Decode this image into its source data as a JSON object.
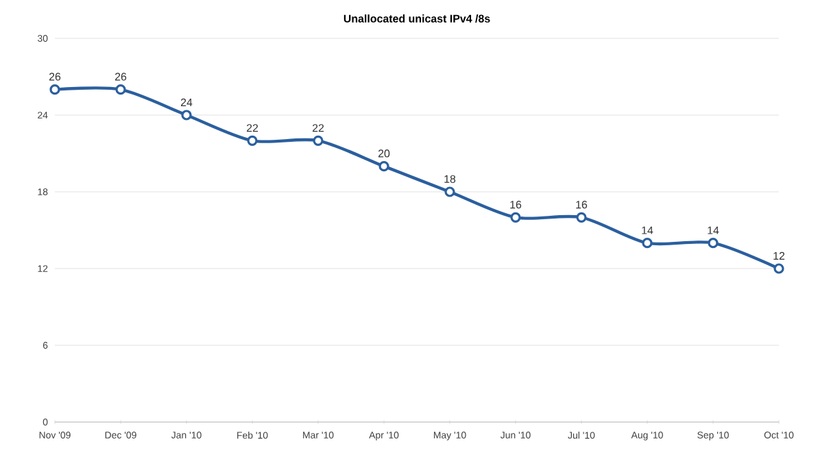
{
  "chart_data": {
    "type": "line",
    "title": "Unallocated unicast IPv4 /8s",
    "categories": [
      "Nov '09",
      "Dec '09",
      "Jan '10",
      "Feb '10",
      "Mar '10",
      "Apr '10",
      "May '10",
      "Jun '10",
      "Jul '10",
      "Aug '10",
      "Sep '10",
      "Oct '10"
    ],
    "values": [
      26,
      26,
      24,
      22,
      22,
      20,
      18,
      16,
      16,
      14,
      14,
      12
    ],
    "color": "#2b5f9e",
    "ylim": [
      0,
      30
    ],
    "yticks": [
      0,
      6,
      12,
      18,
      24,
      30
    ],
    "grid": "y",
    "marker": "circle",
    "line_style": "solid",
    "data_labels": true
  }
}
